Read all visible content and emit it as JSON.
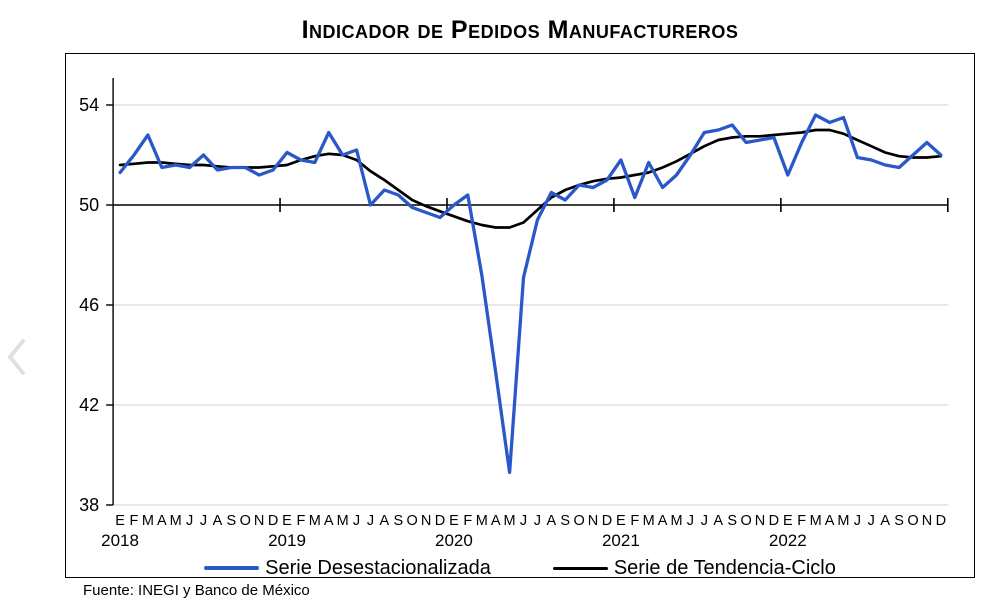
{
  "title": "Indicador de Pedidos Manufactureros",
  "source": "Fuente: INEGI y Banco de México",
  "nav": {
    "prev_icon": "chevron-left"
  },
  "chart_data": {
    "type": "line",
    "title": "Indicador de Pedidos Manufactureros",
    "years": [
      "2018",
      "2019",
      "2020",
      "2021",
      "2022"
    ],
    "month_letters": [
      "E",
      "F",
      "M",
      "A",
      "M",
      "J",
      "J",
      "A",
      "S",
      "O",
      "N",
      "D"
    ],
    "y_ticks": [
      54,
      50,
      46,
      42,
      38
    ],
    "ylim": [
      38,
      55.1
    ],
    "reference_line": 50,
    "grid": "horizontal-light",
    "grid_color": "#d9d9d9",
    "legend_position": "bottom",
    "series": [
      {
        "name": "Serie Desestacionalizada",
        "color": "#2b58c8",
        "values": [
          51.3,
          52.0,
          52.8,
          51.5,
          51.6,
          51.5,
          52.0,
          51.4,
          51.5,
          51.5,
          51.2,
          51.4,
          52.1,
          51.8,
          51.7,
          52.9,
          52.0,
          52.2,
          50.0,
          50.6,
          50.4,
          49.9,
          49.7,
          49.5,
          50.0,
          50.4,
          47.2,
          43.3,
          39.3,
          47.1,
          49.4,
          50.5,
          50.2,
          50.8,
          50.7,
          51.0,
          51.8,
          50.3,
          51.7,
          50.7,
          51.2,
          52.0,
          52.9,
          53.0,
          53.2,
          52.5,
          52.6,
          52.7,
          51.2,
          52.5,
          53.6,
          53.3,
          53.5,
          51.9,
          51.8,
          51.6,
          51.5,
          52.0,
          52.5,
          52.0
        ]
      },
      {
        "name": "Serie de Tendencia-Ciclo",
        "color": "#000000",
        "values": [
          51.6,
          51.65,
          51.7,
          51.7,
          51.65,
          51.6,
          51.6,
          51.55,
          51.5,
          51.5,
          51.5,
          51.55,
          51.6,
          51.8,
          51.95,
          52.05,
          52.0,
          51.8,
          51.35,
          51.0,
          50.6,
          50.2,
          49.95,
          49.75,
          49.55,
          49.35,
          49.2,
          49.1,
          49.1,
          49.3,
          49.8,
          50.3,
          50.6,
          50.8,
          50.95,
          51.05,
          51.1,
          51.2,
          51.3,
          51.5,
          51.75,
          52.05,
          52.35,
          52.6,
          52.7,
          52.75,
          52.75,
          52.8,
          52.85,
          52.9,
          53.0,
          53.0,
          52.85,
          52.6,
          52.35,
          52.1,
          51.95,
          51.9,
          51.9,
          51.95
        ]
      }
    ]
  }
}
